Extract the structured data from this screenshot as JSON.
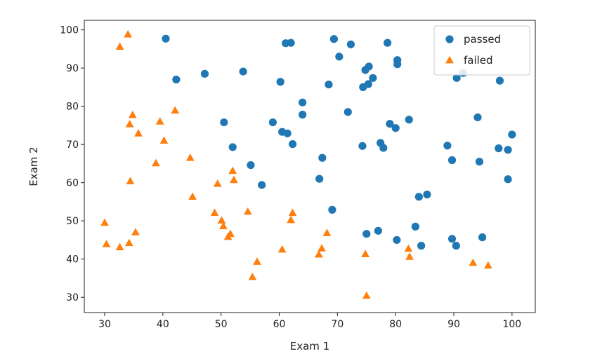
{
  "chart_data": {
    "type": "scatter",
    "title": "",
    "xlabel": "Exam 1",
    "ylabel": "Exam 2",
    "xlim": [
      26.5,
      104.0
    ],
    "ylim": [
      26.0,
      102.5
    ],
    "xticks": [
      30,
      40,
      50,
      60,
      70,
      80,
      90,
      100
    ],
    "yticks": [
      30,
      40,
      50,
      60,
      70,
      80,
      90,
      100
    ],
    "grid": false,
    "legend_position": "top-right",
    "series": [
      {
        "name": "passed",
        "marker": "circle",
        "color": "#1f77b4",
        "points": [
          [
            40.5,
            97.7
          ],
          [
            42.3,
            87.0
          ],
          [
            47.2,
            88.5
          ],
          [
            53.8,
            89.1
          ],
          [
            60.2,
            86.4
          ],
          [
            61.1,
            96.5
          ],
          [
            62.0,
            96.6
          ],
          [
            69.4,
            97.6
          ],
          [
            70.3,
            93.0
          ],
          [
            72.3,
            96.2
          ],
          [
            78.6,
            96.6
          ],
          [
            80.3,
            92.1
          ],
          [
            80.3,
            91.0
          ],
          [
            74.8,
            89.5
          ],
          [
            75.4,
            90.4
          ],
          [
            76.1,
            87.4
          ],
          [
            75.3,
            85.8
          ],
          [
            74.4,
            85.0
          ],
          [
            68.5,
            85.7
          ],
          [
            64.0,
            81.0
          ],
          [
            64.0,
            77.8
          ],
          [
            71.8,
            78.5
          ],
          [
            50.5,
            75.8
          ],
          [
            58.9,
            75.8
          ],
          [
            60.5,
            73.3
          ],
          [
            61.4,
            72.9
          ],
          [
            62.3,
            70.1
          ],
          [
            52.0,
            69.3
          ],
          [
            74.3,
            69.6
          ],
          [
            77.4,
            70.4
          ],
          [
            77.9,
            69.1
          ],
          [
            79.0,
            75.4
          ],
          [
            80.0,
            74.3
          ],
          [
            82.3,
            76.5
          ],
          [
            88.9,
            69.7
          ],
          [
            89.7,
            65.9
          ],
          [
            90.5,
            87.4
          ],
          [
            91.6,
            88.7
          ],
          [
            94.1,
            77.1
          ],
          [
            97.9,
            86.7
          ],
          [
            94.4,
            65.5
          ],
          [
            97.7,
            69.0
          ],
          [
            99.3,
            68.6
          ],
          [
            100.0,
            72.6
          ],
          [
            99.3,
            60.9
          ],
          [
            55.1,
            64.6
          ],
          [
            57.0,
            59.4
          ],
          [
            66.9,
            61.0
          ],
          [
            67.4,
            66.5
          ],
          [
            69.1,
            52.9
          ],
          [
            84.0,
            56.3
          ],
          [
            85.4,
            56.9
          ],
          [
            75.0,
            46.6
          ],
          [
            77.0,
            47.4
          ],
          [
            80.2,
            45.0
          ],
          [
            83.4,
            48.5
          ],
          [
            84.4,
            43.5
          ],
          [
            89.7,
            45.3
          ],
          [
            90.4,
            43.5
          ],
          [
            94.9,
            45.7
          ]
        ]
      },
      {
        "name": "failed",
        "marker": "triangle",
        "color": "#ff7f0e",
        "points": [
          [
            34.0,
            98.8
          ],
          [
            32.6,
            95.6
          ],
          [
            34.3,
            75.3
          ],
          [
            34.8,
            77.7
          ],
          [
            35.8,
            72.9
          ],
          [
            42.1,
            78.9
          ],
          [
            39.5,
            76.0
          ],
          [
            40.2,
            71.0
          ],
          [
            38.8,
            65.1
          ],
          [
            44.7,
            66.5
          ],
          [
            34.4,
            60.4
          ],
          [
            45.1,
            56.3
          ],
          [
            49.4,
            59.7
          ],
          [
            52.0,
            63.1
          ],
          [
            52.2,
            60.7
          ],
          [
            54.6,
            52.4
          ],
          [
            48.9,
            52.1
          ],
          [
            50.1,
            50.1
          ],
          [
            50.4,
            48.6
          ],
          [
            51.2,
            45.8
          ],
          [
            51.6,
            46.6
          ],
          [
            30.0,
            49.5
          ],
          [
            30.3,
            43.9
          ],
          [
            32.6,
            43.1
          ],
          [
            34.2,
            44.2
          ],
          [
            35.3,
            47.0
          ],
          [
            56.2,
            39.3
          ],
          [
            55.4,
            35.3
          ],
          [
            60.5,
            42.5
          ],
          [
            62.0,
            50.2
          ],
          [
            62.3,
            52.1
          ],
          [
            66.8,
            41.2
          ],
          [
            67.3,
            42.8
          ],
          [
            68.2,
            46.8
          ],
          [
            74.8,
            41.3
          ],
          [
            75.0,
            30.4
          ],
          [
            82.2,
            42.7
          ],
          [
            82.4,
            40.6
          ],
          [
            93.3,
            39.0
          ],
          [
            95.9,
            38.3
          ]
        ]
      }
    ]
  }
}
